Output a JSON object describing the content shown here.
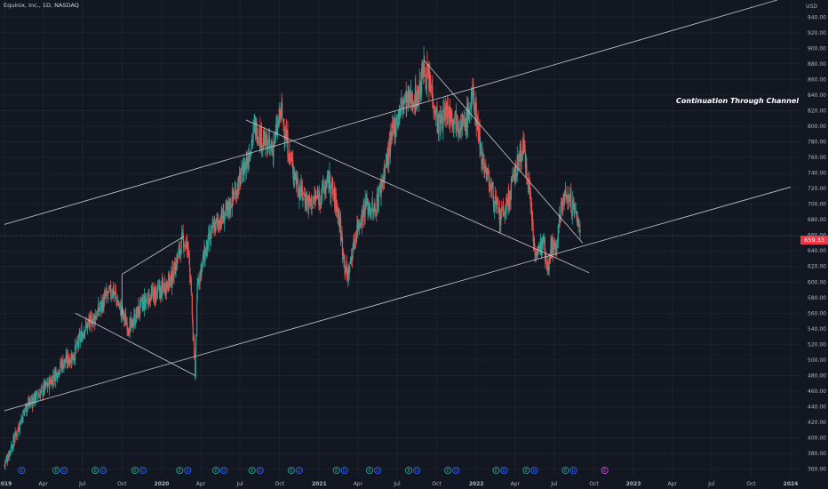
{
  "header": {
    "symbol": "Equinix, Inc., 1D, NASDAQ",
    "currency": "USD"
  },
  "annotation": "Continuation Through Channel",
  "last_price_label": "659.33",
  "colors": {
    "background": "#131722",
    "grid": "#1e222d",
    "up": "#26a69a",
    "down": "#ef5350",
    "trendline": "#c8c8c8",
    "price_badge": "#f23645",
    "axis_text": "#b2b5be",
    "earnings": "#e040fb"
  },
  "chart_data": {
    "type": "candlestick",
    "title": "Equinix, Inc., 1D, NASDAQ",
    "ylabel": "USD",
    "ylim": [
      355,
      962
    ],
    "xlim": [
      "2019-01-01",
      "2024-01-01"
    ],
    "grid": true,
    "y_ticks": [
      360,
      380,
      400,
      420,
      440,
      460,
      480,
      500,
      520,
      540,
      560,
      580,
      600,
      620,
      640,
      660,
      680,
      700,
      720,
      740,
      760,
      780,
      800,
      820,
      840,
      860,
      880,
      900,
      920,
      940
    ],
    "x_ticks": [
      {
        "date": "2019-01-01",
        "label": "2019"
      },
      {
        "date": "2019-04-01",
        "label": "Apr"
      },
      {
        "date": "2019-07-01",
        "label": "Jul"
      },
      {
        "date": "2019-10-01",
        "label": "Oct"
      },
      {
        "date": "2020-01-01",
        "label": "2020"
      },
      {
        "date": "2020-04-01",
        "label": "Apr"
      },
      {
        "date": "2020-07-01",
        "label": "Jul"
      },
      {
        "date": "2020-10-01",
        "label": "Oct"
      },
      {
        "date": "2021-01-01",
        "label": "2021"
      },
      {
        "date": "2021-04-01",
        "label": "Apr"
      },
      {
        "date": "2021-07-01",
        "label": "Jul"
      },
      {
        "date": "2021-10-01",
        "label": "Oct"
      },
      {
        "date": "2022-01-01",
        "label": "2022"
      },
      {
        "date": "2022-04-01",
        "label": "Apr"
      },
      {
        "date": "2022-07-01",
        "label": "Jul"
      },
      {
        "date": "2022-10-01",
        "label": "Oct"
      },
      {
        "date": "2023-01-01",
        "label": "2023"
      },
      {
        "date": "2023-04-01",
        "label": "Apr"
      },
      {
        "date": "2023-07-01",
        "label": "Jul"
      },
      {
        "date": "2023-10-01",
        "label": "Oct"
      },
      {
        "date": "2024-01-01",
        "label": "2024"
      }
    ],
    "price_path": [
      [
        "2019-01-01",
        365
      ],
      [
        "2019-01-25",
        400
      ],
      [
        "2019-02-20",
        440
      ],
      [
        "2019-03-20",
        455
      ],
      [
        "2019-04-15",
        470
      ],
      [
        "2019-05-15",
        495
      ],
      [
        "2019-06-10",
        505
      ],
      [
        "2019-07-05",
        540
      ],
      [
        "2019-07-30",
        555
      ],
      [
        "2019-08-25",
        580
      ],
      [
        "2019-09-10",
        590
      ],
      [
        "2019-10-01",
        560
      ],
      [
        "2019-10-20",
        540
      ],
      [
        "2019-11-10",
        565
      ],
      [
        "2019-12-01",
        580
      ],
      [
        "2020-01-01",
        590
      ],
      [
        "2020-01-25",
        605
      ],
      [
        "2020-02-20",
        655
      ],
      [
        "2020-03-05",
        640
      ],
      [
        "2020-03-12",
        560
      ],
      [
        "2020-03-19",
        485
      ],
      [
        "2020-03-25",
        600
      ],
      [
        "2020-04-10",
        635
      ],
      [
        "2020-05-01",
        670
      ],
      [
        "2020-06-01",
        690
      ],
      [
        "2020-07-01",
        730
      ],
      [
        "2020-07-20",
        760
      ],
      [
        "2020-08-05",
        800
      ],
      [
        "2020-08-25",
        780
      ],
      [
        "2020-09-15",
        770
      ],
      [
        "2020-10-05",
        820
      ],
      [
        "2020-10-25",
        760
      ],
      [
        "2020-11-15",
        720
      ],
      [
        "2020-12-10",
        700
      ],
      [
        "2021-01-01",
        710
      ],
      [
        "2021-01-25",
        730
      ],
      [
        "2021-02-15",
        690
      ],
      [
        "2021-03-01",
        625
      ],
      [
        "2021-03-08",
        605
      ],
      [
        "2021-03-30",
        670
      ],
      [
        "2021-04-20",
        700
      ],
      [
        "2021-05-10",
        690
      ],
      [
        "2021-06-01",
        740
      ],
      [
        "2021-06-25",
        800
      ],
      [
        "2021-07-15",
        830
      ],
      [
        "2021-08-05",
        835
      ],
      [
        "2021-08-20",
        840
      ],
      [
        "2021-09-01",
        875
      ],
      [
        "2021-09-20",
        845
      ],
      [
        "2021-10-05",
        800
      ],
      [
        "2021-10-25",
        820
      ],
      [
        "2021-11-15",
        810
      ],
      [
        "2021-12-05",
        800
      ],
      [
        "2021-12-25",
        840
      ],
      [
        "2022-01-15",
        760
      ],
      [
        "2022-02-05",
        720
      ],
      [
        "2022-02-25",
        680
      ],
      [
        "2022-03-15",
        700
      ],
      [
        "2022-04-01",
        740
      ],
      [
        "2022-04-20",
        775
      ],
      [
        "2022-05-05",
        720
      ],
      [
        "2022-05-15",
        650
      ],
      [
        "2022-05-25",
        630
      ],
      [
        "2022-06-05",
        665
      ],
      [
        "2022-06-15",
        620
      ],
      [
        "2022-06-25",
        650
      ],
      [
        "2022-07-05",
        640
      ],
      [
        "2022-07-20",
        705
      ],
      [
        "2022-08-01",
        710
      ],
      [
        "2022-08-15",
        695
      ],
      [
        "2022-08-25",
        680
      ],
      [
        "2022-09-01",
        659
      ]
    ],
    "trendlines": [
      {
        "name": "channel-upper",
        "from": [
          "2019-01-01",
          674
        ],
        "to": [
          "2023-12-01",
          962
        ]
      },
      {
        "name": "channel-lower",
        "from": [
          "2019-01-01",
          435
        ],
        "to": [
          "2024-01-01",
          722
        ]
      },
      {
        "name": "descending-line",
        "from": [
          "2020-07-15",
          808
        ],
        "to": [
          "2022-09-20",
          612
        ]
      },
      {
        "name": "flag-bottom",
        "from": [
          "2019-06-15",
          560
        ],
        "to": [
          "2020-03-19",
          480
        ]
      },
      {
        "name": "flag-edge-left",
        "from": [
          "2019-10-01",
          558
        ],
        "to": [
          "2019-10-01",
          610
        ]
      },
      {
        "name": "flag-top",
        "from": [
          "2019-10-01",
          610
        ],
        "to": [
          "2020-02-20",
          658
        ]
      },
      {
        "name": "drop-line",
        "from": [
          "2021-09-01",
          885
        ],
        "to": [
          "2022-09-05",
          650
        ]
      }
    ],
    "event_markers": [
      {
        "date": "2019-02-10",
        "labels": [
          "D"
        ]
      },
      {
        "date": "2019-05-01",
        "labels": [
          "E",
          "D"
        ]
      },
      {
        "date": "2019-07-31",
        "labels": [
          "E",
          "D"
        ]
      },
      {
        "date": "2019-10-31",
        "labels": [
          "E",
          "D"
        ]
      },
      {
        "date": "2020-02-12",
        "labels": [
          "E",
          "D"
        ]
      },
      {
        "date": "2020-05-06",
        "labels": [
          "E",
          "D"
        ]
      },
      {
        "date": "2020-07-29",
        "labels": [
          "E",
          "D"
        ]
      },
      {
        "date": "2020-10-28",
        "labels": [
          "E",
          "D"
        ]
      },
      {
        "date": "2021-02-10",
        "labels": [
          "E",
          "D"
        ]
      },
      {
        "date": "2021-04-28",
        "labels": [
          "E",
          "D"
        ]
      },
      {
        "date": "2021-07-28",
        "labels": [
          "E",
          "D"
        ]
      },
      {
        "date": "2021-10-27",
        "labels": [
          "E",
          "D"
        ]
      },
      {
        "date": "2022-02-16",
        "labels": [
          "E",
          "D"
        ]
      },
      {
        "date": "2022-04-27",
        "labels": [
          "E",
          "D"
        ]
      },
      {
        "date": "2022-07-27",
        "labels": [
          "E",
          "D"
        ]
      },
      {
        "date": "2022-10-26",
        "labels": [
          "E"
        ]
      }
    ]
  }
}
